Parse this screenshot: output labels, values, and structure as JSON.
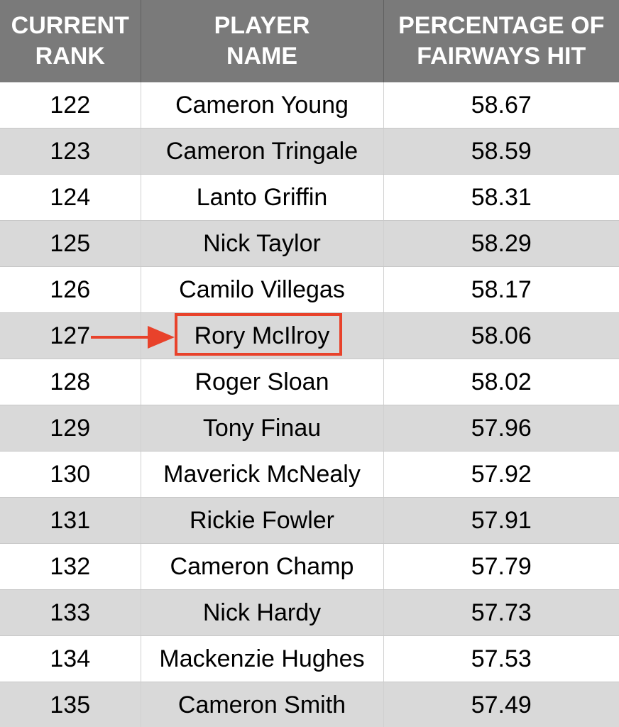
{
  "table": {
    "headers": [
      "CURRENT\nRANK",
      "PLAYER\nNAME",
      "PERCENTAGE OF\nFAIRWAYS HIT"
    ],
    "rows": [
      {
        "rank": "122",
        "player": "Cameron Young",
        "pct": "58.67"
      },
      {
        "rank": "123",
        "player": "Cameron Tringale",
        "pct": "58.59"
      },
      {
        "rank": "124",
        "player": "Lanto Griffin",
        "pct": "58.31"
      },
      {
        "rank": "125",
        "player": "Nick Taylor",
        "pct": "58.29"
      },
      {
        "rank": "126",
        "player": "Camilo Villegas",
        "pct": "58.17"
      },
      {
        "rank": "127",
        "player": "Rory McIlroy",
        "pct": "58.06"
      },
      {
        "rank": "128",
        "player": "Roger Sloan",
        "pct": "58.02"
      },
      {
        "rank": "129",
        "player": "Tony Finau",
        "pct": "57.96"
      },
      {
        "rank": "130",
        "player": "Maverick McNealy",
        "pct": "57.92"
      },
      {
        "rank": "131",
        "player": "Rickie Fowler",
        "pct": "57.91"
      },
      {
        "rank": "132",
        "player": "Cameron Champ",
        "pct": "57.79"
      },
      {
        "rank": "133",
        "player": "Nick Hardy",
        "pct": "57.73"
      },
      {
        "rank": "134",
        "player": "Mackenzie Hughes",
        "pct": "57.53"
      },
      {
        "rank": "135",
        "player": "Cameron Smith",
        "pct": "57.49"
      }
    ]
  },
  "colors": {
    "header_bg": "#7a7a7a",
    "stripe_bg": "#d9d9d9",
    "highlight": "#e8422b"
  },
  "annotation": {
    "highlighted_row_rank": "127",
    "arrow_icon": "right-arrow-icon"
  }
}
